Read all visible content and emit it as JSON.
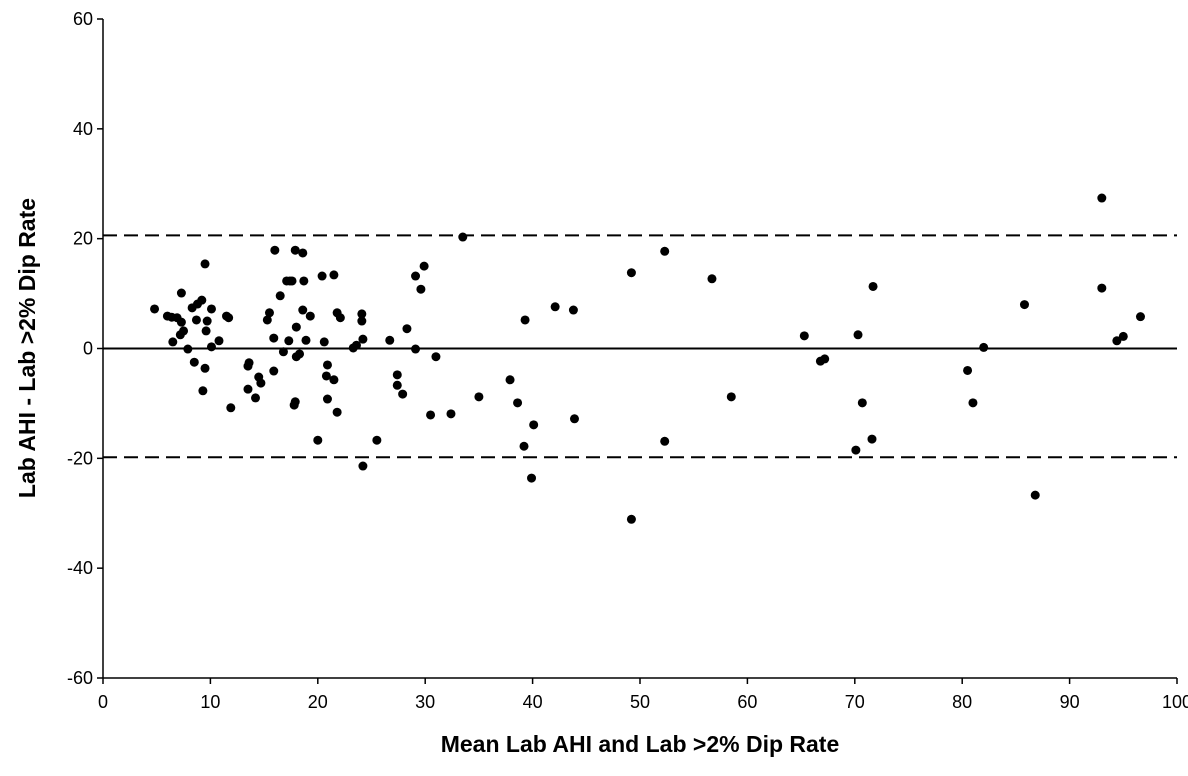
{
  "chart_data": {
    "type": "scatter",
    "x_label": "Mean Lab AHI and Lab >2% Dip Rate",
    "y_label": "Lab AHI - Lab >2% Dip Rate",
    "xlim": [
      0,
      100
    ],
    "xticks": [
      0,
      10,
      20,
      30,
      40,
      50,
      60,
      70,
      80,
      90,
      100
    ],
    "ylim": [
      -60,
      60
    ],
    "yticks": [
      -60,
      -40,
      -20,
      0,
      20,
      40,
      60
    ],
    "color": "#000000",
    "mean_line": 0,
    "limits_of_agreement": [
      20.6,
      -19.8
    ],
    "x": [
      4.8,
      6.0,
      6.4,
      6.9,
      6.5,
      7.3,
      7.3,
      7.2,
      7.5,
      7.9,
      8.3,
      8.5,
      8.8,
      9.2,
      8.7,
      9.5,
      9.7,
      9.6,
      9.5,
      9.3,
      10.1,
      10.1,
      10.8,
      11.5,
      11.7,
      11.9,
      13.5,
      13.5,
      13.6,
      14.2,
      14.5,
      14.7,
      15.3,
      15.5,
      15.9,
      16.0,
      15.9,
      16.5,
      16.8,
      17.1,
      17.4,
      17.3,
      17.6,
      17.8,
      17.9,
      17.9,
      18.0,
      18.0,
      18.3,
      18.6,
      18.6,
      18.7,
      18.9,
      19.3,
      20.0,
      20.4,
      20.6,
      20.8,
      20.9,
      20.9,
      21.5,
      21.5,
      21.8,
      21.8,
      22.1,
      23.3,
      23.6,
      24.1,
      24.1,
      24.2,
      24.2,
      25.5,
      26.7,
      27.4,
      27.4,
      27.9,
      28.3,
      29.1,
      29.1,
      29.6,
      29.9,
      30.5,
      31.0,
      32.4,
      33.5,
      35.0,
      37.9,
      38.6,
      39.3,
      39.2,
      39.9,
      40.1,
      42.1,
      43.8,
      43.9,
      49.2,
      49.2,
      52.3,
      52.3,
      56.7,
      58.5,
      65.3,
      66.8,
      67.2,
      70.1,
      70.3,
      70.7,
      71.6,
      71.7,
      80.5,
      81.0,
      82.0,
      85.8,
      86.8,
      93.0,
      93.0,
      94.4,
      95.0,
      96.6
    ],
    "values": [
      7.2,
      5.9,
      5.7,
      5.6,
      1.2,
      4.8,
      10.1,
      2.5,
      3.2,
      -0.1,
      7.4,
      -2.5,
      8.1,
      8.8,
      5.2,
      15.4,
      5.0,
      3.2,
      -3.6,
      -7.7,
      7.2,
      0.3,
      1.4,
      5.9,
      5.6,
      -10.8,
      -3.2,
      -7.4,
      -2.6,
      -9.0,
      -5.2,
      -6.3,
      5.2,
      6.5,
      -4.1,
      17.9,
      1.9,
      9.6,
      -0.6,
      12.3,
      12.3,
      1.4,
      12.3,
      -10.3,
      -9.7,
      17.9,
      3.9,
      -1.5,
      -1.0,
      17.4,
      7.0,
      12.3,
      1.5,
      5.9,
      -16.7,
      13.2,
      1.2,
      -5.0,
      -3.0,
      -9.2,
      13.4,
      -5.7,
      6.5,
      -11.6,
      5.6,
      0.1,
      0.6,
      6.3,
      5.0,
      -21.4,
      1.7,
      -16.7,
      1.5,
      -4.8,
      -6.7,
      -8.3,
      3.6,
      13.2,
      -0.1,
      10.8,
      15.0,
      -12.1,
      -1.5,
      -11.9,
      20.3,
      -8.8,
      -5.7,
      -9.9,
      5.2,
      -17.8,
      -23.6,
      -13.9,
      7.6,
      7.0,
      -12.8,
      13.8,
      -31.1,
      17.7,
      -16.9,
      12.7,
      -8.8,
      2.3,
      -2.3,
      -1.9,
      -18.5,
      2.5,
      -9.9,
      -16.5,
      11.3,
      -4.0,
      -9.9,
      0.2,
      8.0,
      -26.7,
      27.4,
      11.0,
      1.4,
      2.2,
      5.8
    ]
  }
}
